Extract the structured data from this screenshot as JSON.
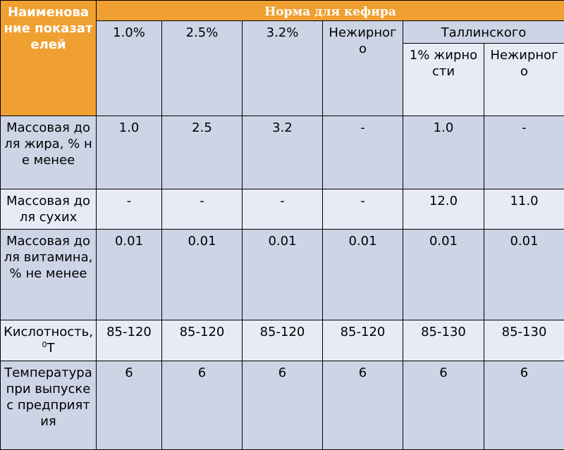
{
  "header": {
    "name": "Наименование показателей",
    "norm": "Норма для кефира",
    "columns": [
      "1.0%",
      "2.5%",
      "3.2%",
      "Нежирного"
    ],
    "tallinn": "Таллинского",
    "tallinn_sub": [
      "1% жирности",
      "Нежирного"
    ]
  },
  "rows": [
    {
      "label": "Массовая доля жира, % не менее",
      "values": [
        "1.0",
        "2.5",
        "3.2",
        "-",
        "1.0",
        "-"
      ]
    },
    {
      "label": "Массовая доля сухих",
      "values": [
        "-",
        "-",
        "-",
        "-",
        "12.0",
        "11.0"
      ]
    },
    {
      "label": "Массовая доля витамина, % не менее",
      "values": [
        "0.01",
        "0.01",
        "0.01",
        "0.01",
        "0.01",
        "0.01"
      ]
    },
    {
      "label": "Кислотность, ",
      "label_sup": "0",
      "label_suffix": "Т",
      "values": [
        "85-120",
        "85-120",
        "85-120",
        "85-120",
        "85-130",
        "85-130"
      ]
    },
    {
      "label": "Температура при выпуске с предприятия",
      "values": [
        "6",
        "6",
        "6",
        "6",
        "6",
        "6"
      ]
    }
  ]
}
